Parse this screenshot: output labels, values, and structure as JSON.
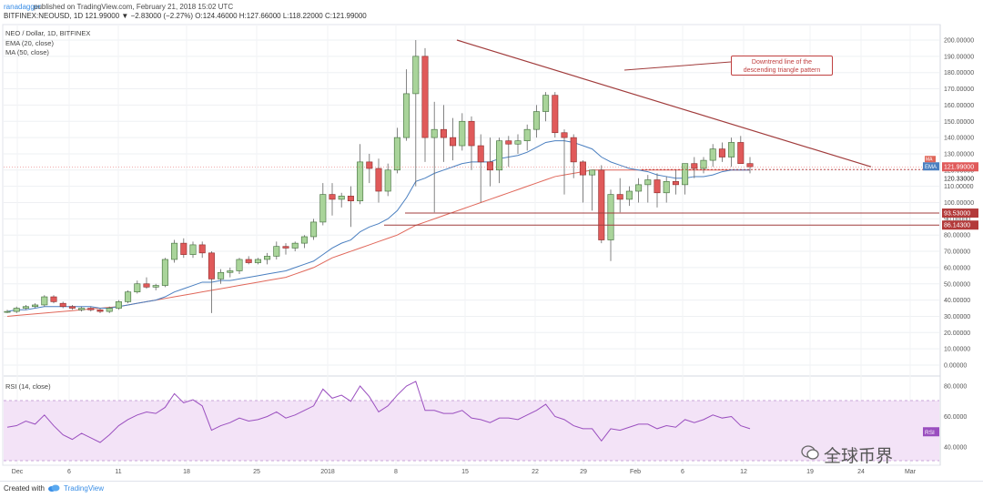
{
  "header": {
    "author": "ranadagger",
    "published": "published on TradingView.com, February 21, 2018 15:02 UTC"
  },
  "symbol_bar": {
    "symbol": "BITFINEX:NEOUSD, 1D",
    "last": "121.99000",
    "change": "▼ −2.83000 (−2.27%)",
    "ohlc": "O:124.46000  H:127.66000  L:118.22000  C:121.99000"
  },
  "legend": {
    "title": "NEO / Dollar, 1D, BITFINEX",
    "ema": "EMA (20, close)",
    "ma": "MA (50, close)",
    "rsi": "RSI (14, close)"
  },
  "annotation": {
    "text_line1": "Downtrend line of the",
    "text_line2": "descending triangle pattern"
  },
  "price_tags": {
    "last": "121.99000",
    "ema": "120.33000",
    "ma_label": "MA",
    "ema_label": "EMA",
    "support1": "93.53000",
    "support2": "86.14300",
    "rsi_label": "RSI"
  },
  "footer": {
    "created_with": "Created with",
    "brand": "TradingView"
  },
  "watermark": "全球币界",
  "colors": {
    "up": "#a9d49a",
    "up_border": "#3e6b38",
    "down": "#e05a5a",
    "down_border": "#8b2a2a",
    "ema": "#4a7fc0",
    "ma": "#e0675a",
    "trend": "#a13c3c",
    "rsi_line": "#9a4fbf",
    "rsi_fill": "#f3e3f7"
  },
  "chart_data": {
    "type": "candlestick",
    "title": "NEO / Dollar, 1D, BITFINEX",
    "x_tick_labels": [
      "Dec",
      "6",
      "11",
      "18",
      "25",
      "2018",
      "8",
      "15",
      "22",
      "29",
      "Feb",
      "6",
      "12",
      "19",
      "24",
      "Mar"
    ],
    "y_tick_labels": [
      "200.00000",
      "190.00000",
      "180.00000",
      "170.00000",
      "160.00000",
      "150.00000",
      "140.00000",
      "130.00000",
      "120.00000",
      "110.00000",
      "100.00000",
      "90.00000",
      "80.00000",
      "70.00000",
      "60.00000",
      "50.00000",
      "40.00000",
      "30.00000",
      "20.00000",
      "10.00000",
      "0.00000"
    ],
    "ylim": [
      -5,
      205
    ],
    "rsi_ticks": [
      "80.0000",
      "60.0000",
      "40.0000"
    ],
    "rsi_band": [
      30,
      70
    ],
    "candles": [
      [
        33,
        34,
        32,
        33
      ],
      [
        33,
        36,
        32,
        35
      ],
      [
        35,
        37,
        34,
        36
      ],
      [
        36,
        38,
        35,
        37
      ],
      [
        37,
        43,
        36,
        42
      ],
      [
        42,
        43,
        38,
        39
      ],
      [
        38,
        39,
        35,
        36
      ],
      [
        36,
        37,
        34,
        35
      ],
      [
        34,
        36,
        33,
        35
      ],
      [
        35,
        36,
        33,
        34
      ],
      [
        34,
        35,
        32,
        33
      ],
      [
        33,
        36,
        32,
        35
      ],
      [
        35,
        40,
        34,
        39
      ],
      [
        39,
        46,
        38,
        45
      ],
      [
        45,
        52,
        44,
        50
      ],
      [
        50,
        54,
        47,
        48
      ],
      [
        48,
        50,
        46,
        49
      ],
      [
        49,
        66,
        48,
        65
      ],
      [
        65,
        77,
        63,
        75
      ],
      [
        75,
        78,
        66,
        68
      ],
      [
        68,
        76,
        66,
        74
      ],
      [
        74,
        76,
        66,
        69
      ],
      [
        69,
        70,
        32,
        53
      ],
      [
        53,
        59,
        50,
        57
      ],
      [
        57,
        60,
        54,
        58
      ],
      [
        58,
        66,
        56,
        65
      ],
      [
        65,
        67,
        62,
        63
      ],
      [
        63,
        66,
        62,
        65
      ],
      [
        65,
        69,
        62,
        67
      ],
      [
        67,
        76,
        65,
        73
      ],
      [
        73,
        75,
        68,
        72
      ],
      [
        72,
        76,
        70,
        75
      ],
      [
        75,
        80,
        72,
        79
      ],
      [
        79,
        90,
        77,
        88
      ],
      [
        88,
        112,
        86,
        105
      ],
      [
        105,
        112,
        92,
        102
      ],
      [
        102,
        106,
        97,
        104
      ],
      [
        104,
        110,
        85,
        101
      ],
      [
        101,
        136,
        99,
        125
      ],
      [
        125,
        130,
        112,
        121
      ],
      [
        121,
        127,
        100,
        107
      ],
      [
        107,
        124,
        104,
        120
      ],
      [
        120,
        146,
        118,
        140
      ],
      [
        140,
        182,
        138,
        167
      ],
      [
        167,
        200,
        110,
        190
      ],
      [
        190,
        195,
        125,
        140
      ],
      [
        140,
        162,
        94,
        145
      ],
      [
        145,
        160,
        125,
        140
      ],
      [
        140,
        152,
        126,
        135
      ],
      [
        135,
        155,
        132,
        150
      ],
      [
        150,
        153,
        120,
        135
      ],
      [
        135,
        142,
        100,
        125
      ],
      [
        125,
        140,
        110,
        120
      ],
      [
        120,
        140,
        112,
        138
      ],
      [
        138,
        141,
        122,
        136
      ],
      [
        136,
        142,
        130,
        138
      ],
      [
        138,
        148,
        132,
        145
      ],
      [
        145,
        160,
        140,
        156
      ],
      [
        156,
        168,
        150,
        166
      ],
      [
        166,
        168,
        140,
        143
      ],
      [
        143,
        145,
        105,
        140
      ],
      [
        140,
        142,
        115,
        125
      ],
      [
        125,
        126,
        100,
        117
      ],
      [
        117,
        120,
        95,
        120
      ],
      [
        120,
        123,
        75,
        77
      ],
      [
        77,
        108,
        64,
        105
      ],
      [
        105,
        115,
        94,
        102
      ],
      [
        102,
        110,
        98,
        107
      ],
      [
        107,
        115,
        100,
        111
      ],
      [
        111,
        117,
        100,
        114
      ],
      [
        114,
        118,
        97,
        106
      ],
      [
        106,
        116,
        100,
        113
      ],
      [
        113,
        120,
        105,
        111
      ],
      [
        111,
        122,
        105,
        124
      ],
      [
        124,
        128,
        115,
        121
      ],
      [
        121,
        128,
        118,
        126
      ],
      [
        126,
        136,
        122,
        133
      ],
      [
        133,
        137,
        125,
        128
      ],
      [
        128,
        140,
        122,
        137
      ],
      [
        137,
        141,
        126,
        124
      ],
      [
        124,
        128,
        118,
        122
      ]
    ],
    "ema20": [
      33,
      34,
      34,
      35,
      36,
      36,
      36,
      36,
      36,
      36,
      35,
      35,
      36,
      37,
      38,
      39,
      40,
      42,
      45,
      47,
      49,
      51,
      51,
      52,
      52,
      53,
      54,
      55,
      56,
      57,
      58,
      60,
      62,
      64,
      68,
      72,
      75,
      77,
      82,
      85,
      87,
      90,
      95,
      103,
      113,
      115,
      118,
      120,
      122,
      124,
      125,
      125,
      125,
      127,
      128,
      129,
      131,
      134,
      137,
      138,
      138,
      137,
      135,
      133,
      128,
      125,
      123,
      121,
      120,
      119,
      117,
      116,
      115,
      115,
      116,
      116,
      117,
      119,
      120,
      120,
      120
    ],
    "ma50": [
      30,
      30.5,
      31,
      31.5,
      32,
      32.5,
      33,
      33.5,
      34,
      34.5,
      35,
      35.5,
      36,
      37,
      38,
      39,
      40,
      41,
      42,
      43,
      44,
      45,
      46,
      47,
      48,
      49,
      50,
      51,
      52,
      53,
      54,
      56,
      58,
      60,
      63,
      66,
      68,
      70,
      72,
      74,
      76,
      78,
      80,
      83,
      86,
      88,
      90,
      92,
      94,
      96,
      98,
      100,
      102,
      104,
      106,
      108,
      110,
      112,
      114,
      116,
      117,
      118,
      119,
      120,
      120,
      120,
      120,
      120,
      120,
      120,
      120,
      120,
      120,
      120,
      120,
      120,
      120,
      120,
      120,
      120,
      120
    ],
    "rsi": [
      53,
      54,
      57,
      55,
      61,
      54,
      48,
      45,
      49,
      46,
      43,
      48,
      54,
      58,
      61,
      63,
      62,
      66,
      75,
      69,
      71,
      67,
      51,
      54,
      56,
      59,
      57,
      58,
      60,
      63,
      59,
      61,
      64,
      67,
      78,
      72,
      74,
      70,
      80,
      73,
      63,
      67,
      74,
      80,
      83,
      64,
      64,
      62,
      62,
      64,
      59,
      58,
      56,
      59,
      59,
      58,
      61,
      64,
      68,
      60,
      58,
      54,
      52,
      52,
      44,
      52,
      51,
      53,
      55,
      55,
      52,
      54,
      53,
      58,
      56,
      58,
      61,
      59,
      60,
      54,
      52
    ],
    "support_levels": [
      93.53,
      86.143
    ],
    "trendline": {
      "from": [
        44,
        200
      ],
      "to": [
        81,
        122
      ]
    },
    "annotation_text": "Downtrend line of the descending triangle pattern"
  }
}
